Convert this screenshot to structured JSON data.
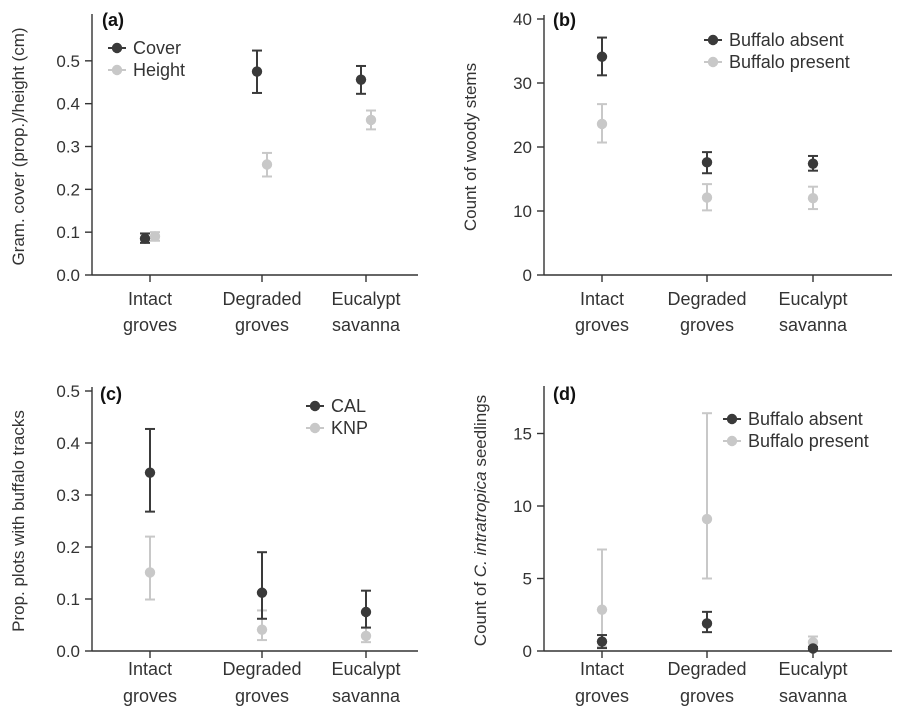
{
  "colors": {
    "dark": "#3a3a3a",
    "light": "#c8c8c8"
  },
  "chart_data": [
    {
      "type": "scatter",
      "panel_label": "(a)",
      "ylabel": "Gram. cover (prop.)/height (cm)",
      "ylim": [
        0,
        0.6
      ],
      "yticks": [
        "0.0",
        "0.1",
        "0.2",
        "0.3",
        "0.4",
        "0.5"
      ],
      "categories": [
        [
          "Intact",
          "groves"
        ],
        [
          "Degraded",
          "groves"
        ],
        [
          "Eucalypt",
          "savanna"
        ]
      ],
      "legend_position": "top-left",
      "series": [
        {
          "name": "Cover",
          "color": "dark",
          "values": [
            0.085,
            0.475,
            0.456
          ],
          "err_low": [
            0.075,
            0.425,
            0.423
          ],
          "err_high": [
            0.097,
            0.524,
            0.488
          ]
        },
        {
          "name": "Height",
          "color": "light",
          "values": [
            0.09,
            0.258,
            0.362
          ],
          "err_low": [
            0.08,
            0.23,
            0.34
          ],
          "err_high": [
            0.1,
            0.285,
            0.384
          ]
        }
      ]
    },
    {
      "type": "scatter",
      "panel_label": "(b)",
      "ylabel": "Count of woody stems",
      "ylim": [
        0,
        40
      ],
      "yticks": [
        "0",
        "10",
        "20",
        "30",
        "40"
      ],
      "categories": [
        [
          "Intact",
          "groves"
        ],
        [
          "Degraded",
          "groves"
        ],
        [
          "Eucalypt",
          "savanna"
        ]
      ],
      "legend_position": "top-right",
      "series": [
        {
          "name": "Buffalo absent",
          "color": "dark",
          "values": [
            34.1,
            17.6,
            17.4
          ],
          "err_low": [
            31.2,
            15.9,
            16.3
          ],
          "err_high": [
            37.1,
            19.2,
            18.6
          ]
        },
        {
          "name": "Buffalo present",
          "color": "light",
          "values": [
            23.6,
            12.1,
            12.0
          ],
          "err_low": [
            20.7,
            10.1,
            10.3
          ],
          "err_high": [
            26.7,
            14.2,
            13.8
          ]
        }
      ]
    },
    {
      "type": "scatter",
      "panel_label": "(c)",
      "ylabel": "Prop. plots with buffalo tracks",
      "ylim": [
        0,
        0.5
      ],
      "yticks": [
        "0.0",
        "0.1",
        "0.2",
        "0.3",
        "0.4",
        "0.5"
      ],
      "categories": [
        [
          "Intact",
          "groves"
        ],
        [
          "Degraded",
          "groves"
        ],
        [
          "Eucalypt",
          "savanna"
        ]
      ],
      "legend_position": "top-right",
      "series": [
        {
          "name": "CAL",
          "color": "dark",
          "values": [
            0.343,
            0.112,
            0.075
          ],
          "err_low": [
            0.268,
            0.062,
            0.045
          ],
          "err_high": [
            0.427,
            0.19,
            0.116
          ]
        },
        {
          "name": "KNP",
          "color": "light",
          "values": [
            0.151,
            0.041,
            0.029
          ],
          "err_low": [
            0.099,
            0.021,
            0.017
          ],
          "err_high": [
            0.22,
            0.078,
            0.045
          ]
        }
      ]
    },
    {
      "type": "scatter",
      "panel_label": "(d)",
      "ylabel_prefix": "Count of ",
      "ylabel_italic": "C. intratropica",
      "ylabel_suffix": " seedlings",
      "ylim": [
        0,
        18
      ],
      "yticks": [
        "0",
        "5",
        "10",
        "15"
      ],
      "categories": [
        [
          "Intact",
          "groves"
        ],
        [
          "Degraded",
          "groves"
        ],
        [
          "Eucalypt",
          "savanna"
        ]
      ],
      "legend_position": "top-right",
      "series": [
        {
          "name": "Buffalo absent",
          "color": "dark",
          "values": [
            0.65,
            1.9,
            0.18
          ],
          "err_low": [
            0.2,
            1.3,
            0.08
          ],
          "err_high": [
            1.1,
            2.7,
            0.28
          ]
        },
        {
          "name": "Buffalo present",
          "color": "light",
          "values": [
            2.85,
            9.1,
            0.6
          ],
          "err_low": [
            0.3,
            5.0,
            0.3
          ],
          "err_high": [
            7.0,
            16.4,
            1.0
          ]
        }
      ]
    }
  ]
}
